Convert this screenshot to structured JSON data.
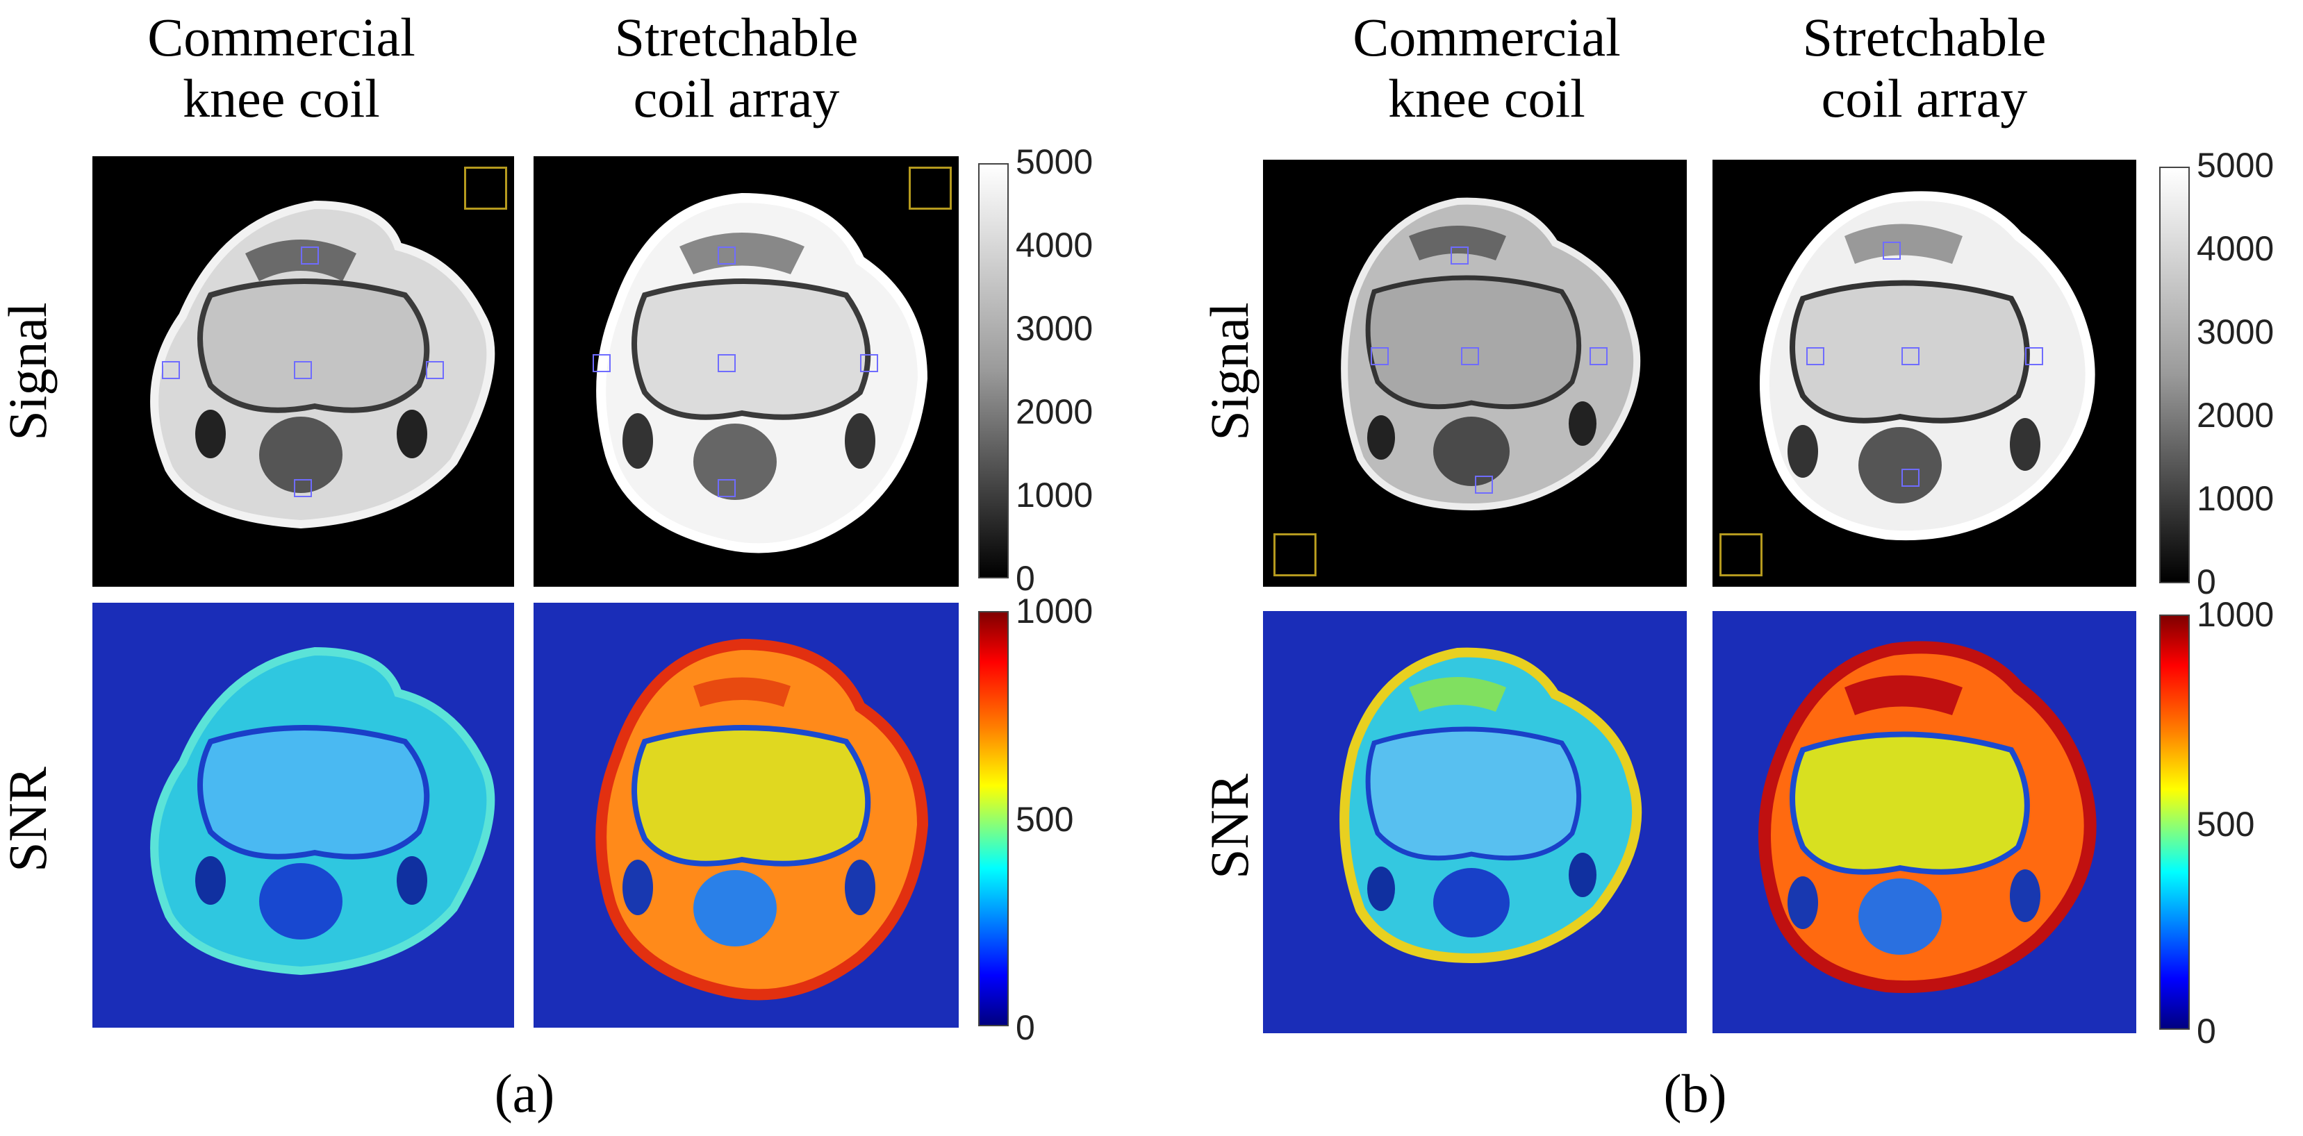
{
  "panel_a": {
    "col_titles": [
      {
        "line1": "Commercial",
        "line2": "knee coil"
      },
      {
        "line1": "Stretchable",
        "line2": "coil array"
      }
    ],
    "row_labels": {
      "signal": "Signal",
      "snr": "SNR"
    },
    "signal_colorbar_ticks": [
      "5000",
      "4000",
      "3000",
      "2000",
      "1000",
      "0"
    ],
    "snr_colorbar_ticks": [
      "1000",
      "500",
      "0"
    ],
    "caption": "(a)"
  },
  "panel_b": {
    "col_titles": [
      {
        "line1": "Commercial",
        "line2": "knee coil"
      },
      {
        "line1": "Stretchable",
        "line2": "coil array"
      }
    ],
    "row_labels": {
      "signal": "Signal",
      "snr": "SNR"
    },
    "signal_colorbar_ticks": [
      "5000",
      "4000",
      "3000",
      "2000",
      "1000",
      "0"
    ],
    "snr_colorbar_ticks": [
      "1000",
      "500",
      "0"
    ],
    "caption": "(b)"
  },
  "colors": {
    "roi_outline": "#6f6cff",
    "noise_roi_outline": "#b59a1e",
    "snr_background": "#1a2db8"
  }
}
